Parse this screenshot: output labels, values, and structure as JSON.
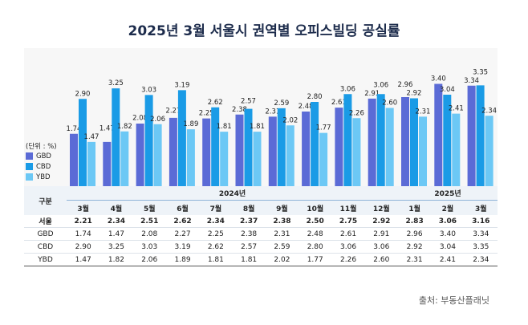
{
  "title": "2025년 3월 서울시 권역별 오피스빌딩 공실률",
  "source": "출처: 부동산플래닛",
  "unit_label": "(단위 : %)",
  "colors": {
    "GBD": "#5b6bd6",
    "CBD": "#1a9be6",
    "YBD": "#6cc8f5"
  },
  "chart_data": {
    "type": "bar",
    "categories": [
      "3월",
      "4월",
      "5월",
      "6월",
      "7월",
      "8월",
      "9월",
      "10월",
      "11월",
      "12월",
      "1월",
      "2월",
      "3월"
    ],
    "year_labels": [
      "2024년",
      "2025년"
    ],
    "series": [
      {
        "name": "GBD",
        "values": [
          1.74,
          1.47,
          2.08,
          2.27,
          2.25,
          2.38,
          2.31,
          2.48,
          2.61,
          2.91,
          2.96,
          3.4,
          3.34
        ]
      },
      {
        "name": "CBD",
        "values": [
          2.9,
          3.25,
          3.03,
          3.19,
          2.62,
          2.57,
          2.59,
          2.8,
          3.06,
          3.06,
          2.92,
          3.04,
          3.35
        ]
      },
      {
        "name": "YBD",
        "values": [
          1.47,
          1.82,
          2.06,
          1.89,
          1.81,
          1.81,
          2.02,
          1.77,
          2.26,
          2.6,
          2.31,
          2.41,
          2.34
        ]
      }
    ],
    "legend": "left"
  },
  "table": {
    "header": "구분",
    "rows": [
      {
        "label": "서울",
        "values": [
          "2.21",
          "2.34",
          "2.51",
          "2.62",
          "2.34",
          "2.37",
          "2.38",
          "2.50",
          "2.75",
          "2.92",
          "2.83",
          "3.06",
          "3.16"
        ]
      },
      {
        "label": "GBD",
        "values": [
          "1.74",
          "1.47",
          "2.08",
          "2.27",
          "2.25",
          "2.38",
          "2.31",
          "2.48",
          "2.61",
          "2.91",
          "2.96",
          "3.40",
          "3.34"
        ]
      },
      {
        "label": "CBD",
        "values": [
          "2.90",
          "3.25",
          "3.03",
          "3.19",
          "2.62",
          "2.57",
          "2.59",
          "2.80",
          "3.06",
          "3.06",
          "2.92",
          "3.04",
          "3.35"
        ]
      },
      {
        "label": "YBD",
        "values": [
          "1.47",
          "1.82",
          "2.06",
          "1.89",
          "1.81",
          "1.81",
          "2.02",
          "1.77",
          "2.26",
          "2.60",
          "2.31",
          "2.41",
          "2.34"
        ]
      }
    ]
  }
}
